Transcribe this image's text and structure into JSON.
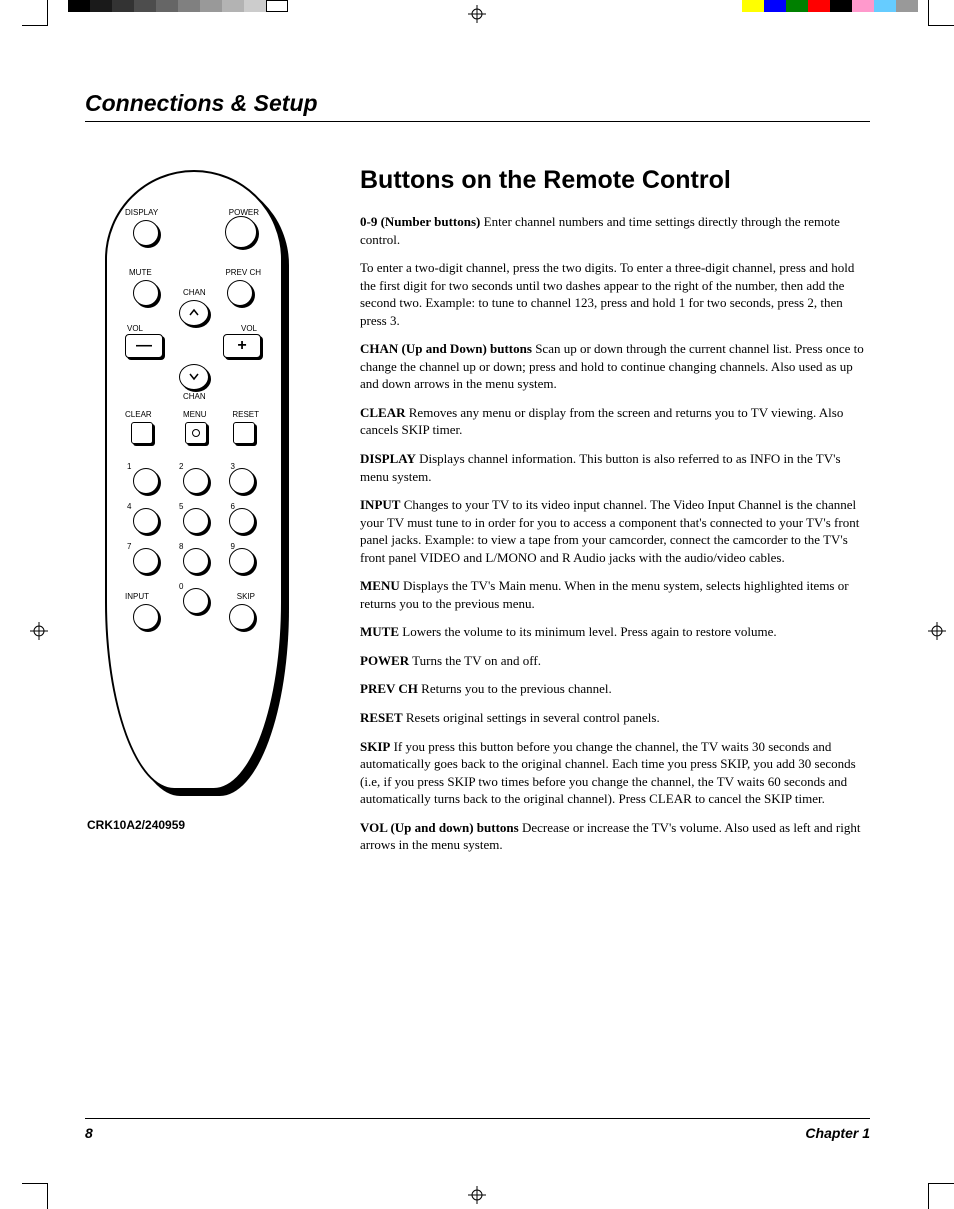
{
  "printmarks": {
    "left_swatches": [
      "#000000",
      "#1a1a1a",
      "#333333",
      "#4d4d4d",
      "#666666",
      "#808080",
      "#999999",
      "#b3b3b3",
      "#cccccc",
      "#ffffff"
    ],
    "right_swatches": [
      "#ffff00",
      "#0000ff",
      "#008000",
      "#ff0000",
      "#000000",
      "#ff99cc",
      "#66ccff",
      "#999999"
    ]
  },
  "header": {
    "section_title": "Connections & Setup"
  },
  "remote": {
    "caption": "CRK10A2/240959",
    "labels": {
      "display": "DISPLAY",
      "power": "POWER",
      "mute": "MUTE",
      "prevch": "PREV CH",
      "chan_top": "CHAN",
      "chan_bot": "CHAN",
      "vol_l": "VOL",
      "vol_r": "VOL",
      "clear": "CLEAR",
      "menu": "MENU",
      "reset": "RESET",
      "input": "INPUT",
      "skip": "SKIP",
      "n1": "1",
      "n2": "2",
      "n3": "3",
      "n4": "4",
      "n5": "5",
      "n6": "6",
      "n7": "7",
      "n8": "8",
      "n9": "9",
      "n0": "0",
      "minus": "—",
      "plus": "+"
    }
  },
  "body": {
    "title": "Buttons on the Remote Control",
    "items": [
      {
        "bold": "0-9 (Number buttons)",
        "text": "   Enter channel numbers and time settings directly through the remote control."
      },
      {
        "bold": "",
        "text": "To enter a two-digit channel, press the two digits. To enter a three-digit channel, press and hold the first digit for two seconds until two dashes appear to the right of the number, then add the second two. Example: to tune to channel 123, press and hold 1 for two seconds, press 2, then press 3."
      },
      {
        "bold": "CHAN (Up and Down) buttons",
        "text": "  Scan up or down through the current channel list. Press once to change the channel up or down; press and hold to continue changing channels. Also used as up and down arrows in the menu system."
      },
      {
        "bold": "CLEAR",
        "text": "   Removes any menu or display from the screen and returns you to TV viewing. Also cancels SKIP timer."
      },
      {
        "bold": "DISPLAY",
        "text": "  Displays channel information. This button is also referred to as INFO in the TV's menu system."
      },
      {
        "bold": "INPUT",
        "text": "    Changes to your TV to its video input channel. The Video Input Channel is the channel your TV must tune to in order for you to access a component that's connected to your TV's front panel jacks. Example: to view a tape from your camcorder, connect the camcorder to the TV's front panel VIDEO and L/MONO and R Audio jacks with the audio/video cables."
      },
      {
        "bold": "MENU",
        "text": "   Displays the TV's Main menu. When in the menu system, selects highlighted items or returns you to the previous menu."
      },
      {
        "bold": "MUTE",
        "text": "   Lowers the volume to its minimum level. Press again to restore volume."
      },
      {
        "bold": "POWER",
        "text": "  Turns the TV on and off."
      },
      {
        "bold": "PREV CH",
        "text": "   Returns you to the previous channel."
      },
      {
        "bold": "RESET",
        "text": "    Resets original settings in several control panels."
      },
      {
        "bold": "SKIP",
        "text": "   If you press this button before you change the channel, the TV waits 30 seconds and automatically goes back to the original channel. Each time you press SKIP, you add 30 seconds (i.e, if you press SKIP two times before you change the channel, the TV waits 60 seconds and automatically turns back to the original channel). Press CLEAR to cancel the SKIP timer."
      },
      {
        "bold": "VOL (Up and down) buttons",
        "text": "  Decrease or increase the TV's volume. Also used as left and right arrows in the menu system."
      }
    ]
  },
  "footer": {
    "page": "8",
    "chapter": "Chapter 1"
  }
}
